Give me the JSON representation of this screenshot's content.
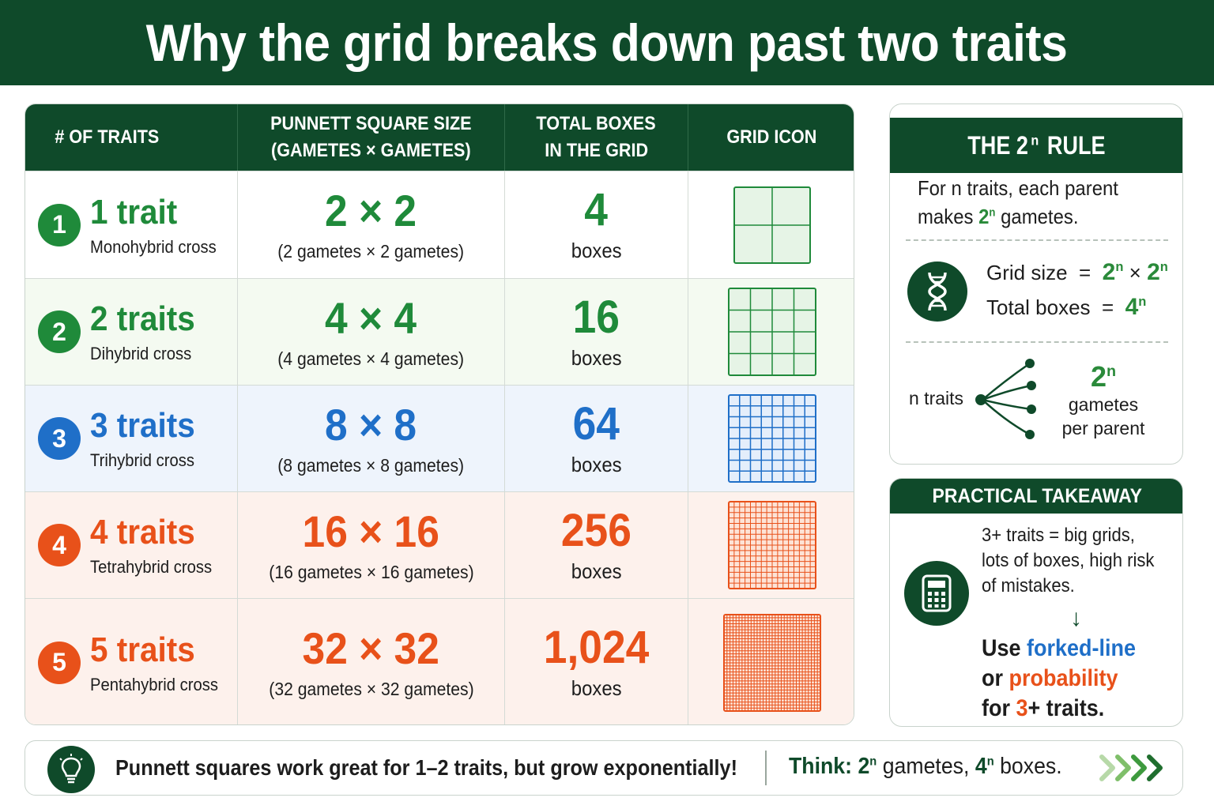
{
  "title": "Why the grid breaks down past two traits",
  "table": {
    "headers": [
      {
        "line1": "# OF TRAITS",
        "line2": ""
      },
      {
        "line1": "PUNNETT SQUARE SIZE",
        "line2": "(GAMETES × GAMETES)"
      },
      {
        "line1": "TOTAL BOXES",
        "line2": "IN THE GRID"
      },
      {
        "line1": "GRID ICON",
        "line2": ""
      }
    ],
    "rows": [
      {
        "num": "1",
        "trait": "1 trait",
        "cross": "Monohybrid cross",
        "size": "2 × 2",
        "size_detail": "(2 gametes × 2 gametes)",
        "total": "4",
        "unit": "boxes",
        "grid_n": 2,
        "color": "#1f8a3a",
        "bg": "#ffffff",
        "icon_fill": "#e6f4e6"
      },
      {
        "num": "2",
        "trait": "2 traits",
        "cross": "Dihybrid cross",
        "size": "4 × 4",
        "size_detail": "(4 gametes × 4 gametes)",
        "total": "16",
        "unit": "boxes",
        "grid_n": 4,
        "color": "#1f8a3a",
        "bg": "#f4faf1",
        "icon_fill": "#e6f4e6"
      },
      {
        "num": "3",
        "trait": "3 traits",
        "cross": "Trihybrid cross",
        "size": "8 × 8",
        "size_detail": "(8 gametes × 8 gametes)",
        "total": "64",
        "unit": "boxes",
        "grid_n": 8,
        "color": "#1f6fc8",
        "bg": "#eef4fc",
        "icon_fill": "#e4eefb"
      },
      {
        "num": "4",
        "trait": "4 traits",
        "cross": "Tetrahybrid cross",
        "size": "16 × 16",
        "size_detail": "(16 gametes × 16 gametes)",
        "total": "256",
        "unit": "boxes",
        "grid_n": 16,
        "color": "#e8511a",
        "bg": "#fdf1ec",
        "icon_fill": "#fde3d6"
      },
      {
        "num": "5",
        "trait": "5 traits",
        "cross": "Pentahybrid cross",
        "size": "32 × 32",
        "size_detail": "(32 gametes × 32 gametes)",
        "total": "1,024",
        "unit": "boxes",
        "grid_n": 32,
        "color": "#e8511a",
        "bg": "#fdf1ec",
        "icon_fill": "#fde3d6"
      }
    ]
  },
  "rule": {
    "title": "THE 2",
    "title_sup": "n",
    "title_end": " RULE",
    "intro_line1": "For n traits, each parent",
    "intro_line2_pre": "makes ",
    "intro_line2_base": "2",
    "intro_line2_sup": "n",
    "intro_line2_post": " gametes.",
    "grid_label": "Grid size  =  ",
    "grid_a": "2",
    "grid_a_sup": "n",
    "grid_times": " × ",
    "grid_b": "2",
    "grid_b_sup": "n",
    "total_label": "Total boxes  =  ",
    "total_base": "4",
    "total_sup": "n",
    "fork_label": "n traits",
    "fork_base": "2",
    "fork_sup": "n",
    "fork_line1": "gametes",
    "fork_line2": "per parent"
  },
  "takeaway": {
    "title": "PRACTICAL TAKEAWAY",
    "line1": "3+ traits = big grids,",
    "line2": "lots of boxes, high risk",
    "line3": "of mistakes.",
    "arrow": "↓",
    "use_pre": "Use ",
    "use_blue": "forked-line",
    "or_pre": "or ",
    "or_orange": "probability",
    "for_pre": "for ",
    "for_orange": "3",
    "for_post": "+ traits."
  },
  "banner": {
    "message": "Punnett squares work great for 1–2 traits, but grow exponentially!",
    "think_label": "Think:",
    "think_a_base": "2",
    "think_a_sup": "n",
    "think_a_post": " gametes, ",
    "think_b_base": "4",
    "think_b_sup": "n",
    "think_b_post": " boxes."
  },
  "colors": {
    "brand": "#0f4a2a",
    "green": "#1f8a3a",
    "blue": "#1f6fc8",
    "orange": "#e8511a"
  },
  "icons": [
    "dna-icon",
    "calculator-icon",
    "lightbulb-icon",
    "chevrons-right-icon",
    "fork-icon"
  ]
}
